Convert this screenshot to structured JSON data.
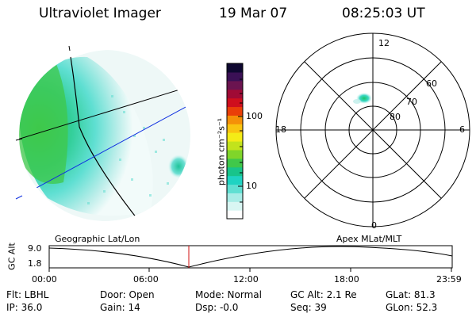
{
  "header": {
    "instrument": "Ultraviolet Imager",
    "date": "19 Mar 07",
    "time": "08:25:03 UT"
  },
  "colorbar": {
    "unit_label": "photon cm⁻²s⁻¹",
    "ticks": [
      "100",
      "10"
    ],
    "colors": [
      "#ffffff",
      "#d9f6f3",
      "#a8ece6",
      "#60dfd2",
      "#1fd3c2",
      "#18c48a",
      "#40c84a",
      "#80d52a",
      "#c2e31c",
      "#f4ec17",
      "#f9c410",
      "#f59008",
      "#ea3f08",
      "#cf0e1d",
      "#a00a35",
      "#6b1450",
      "#3a1055",
      "#0e0730"
    ]
  },
  "polar_plot": {
    "mlt_labels": [
      "12",
      "6",
      "0",
      "18"
    ],
    "lat_labels": [
      "60",
      "70",
      "80"
    ]
  },
  "timeline": {
    "axis_label": "GC Alt",
    "y_ticks": [
      "9.0",
      "1.8"
    ],
    "left_title": "Geographic Lat/Lon",
    "right_title": "Apex  MLat/MLT",
    "x_ticks": [
      "00:00",
      "06:00",
      "12:00",
      "18:00",
      "23:59"
    ],
    "current_marker_color": "#d01010"
  },
  "footer": {
    "flt": "Flt: LBHL",
    "door": "Door: Open",
    "mode": "Mode: Normal",
    "gcalt": "GC Alt: 2.1 Re",
    "glat": "GLat:  81.3",
    "ip": "IP: 36.0",
    "gain": "Gain: 14",
    "dsp": "Dsp:   -0.0",
    "seq": "Seq: 39",
    "glon": "GLon:  52.3"
  }
}
